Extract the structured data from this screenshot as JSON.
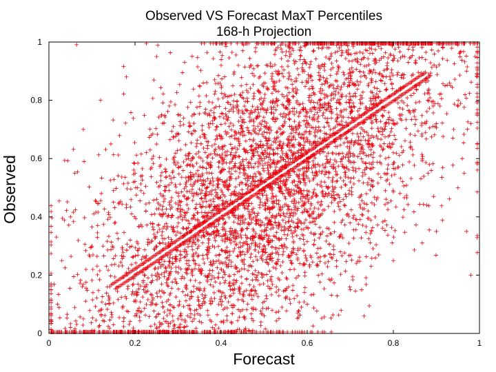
{
  "chart_data": {
    "type": "scatter",
    "title": "Observed VS Forecast MaxT Percentiles",
    "subtitle": "168-h Projection",
    "xlabel": "Forecast",
    "ylabel": "Observed",
    "xlim": [
      0,
      1
    ],
    "ylim": [
      0,
      1
    ],
    "x_ticks": [
      "0",
      "0.2",
      "0.4",
      "0.6",
      "0.8",
      "1"
    ],
    "y_ticks": [
      "0",
      "0.2",
      "0.4",
      "0.6",
      "0.8",
      "1"
    ],
    "grid": false,
    "legend": "none",
    "marker": "plus",
    "color": "#e8000b",
    "series": [
      {
        "description_points": [
          [
            0.15,
            0.16
          ],
          [
            0.2,
            0.21
          ],
          [
            0.25,
            0.26
          ],
          [
            0.3,
            0.31
          ],
          [
            0.35,
            0.36
          ],
          [
            0.4,
            0.41
          ],
          [
            0.45,
            0.46
          ],
          [
            0.5,
            0.51
          ],
          [
            0.55,
            0.56
          ],
          [
            0.6,
            0.61
          ],
          [
            0.65,
            0.66
          ],
          [
            0.7,
            0.71
          ],
          [
            0.75,
            0.76
          ],
          [
            0.8,
            0.81
          ],
          [
            0.85,
            0.86
          ],
          [
            0.88,
            0.89
          ]
        ],
        "values": [
          [
            0.05,
            0.02
          ],
          [
            0.08,
            0.05
          ],
          [
            0.1,
            0.01
          ],
          [
            0.12,
            0.08
          ],
          [
            0.15,
            0.03
          ],
          [
            0.18,
            0.12
          ],
          [
            0.2,
            0.06
          ],
          [
            0.22,
            0.15
          ],
          [
            0.25,
            0.1
          ],
          [
            0.28,
            0.2
          ],
          [
            0.3,
            0.05
          ],
          [
            0.32,
            0.25
          ],
          [
            0.35,
            0.15
          ],
          [
            0.38,
            0.3
          ],
          [
            0.4,
            0.22
          ],
          [
            0.42,
            0.35
          ],
          [
            0.45,
            0.28
          ],
          [
            0.48,
            0.4
          ],
          [
            0.5,
            0.33
          ],
          [
            0.52,
            0.45
          ],
          [
            0.55,
            0.38
          ],
          [
            0.58,
            0.5
          ],
          [
            0.6,
            0.42
          ],
          [
            0.62,
            0.55
          ],
          [
            0.65,
            0.48
          ],
          [
            0.68,
            0.6
          ],
          [
            0.7,
            0.52
          ],
          [
            0.72,
            0.65
          ],
          [
            0.75,
            0.58
          ],
          [
            0.78,
            0.7
          ],
          [
            0.8,
            0.62
          ],
          [
            0.82,
            0.75
          ],
          [
            0.85,
            0.68
          ],
          [
            0.88,
            0.8
          ],
          [
            0.9,
            0.72
          ],
          [
            0.92,
            0.85
          ],
          [
            0.95,
            0.78
          ],
          [
            0.97,
            0.9
          ],
          [
            0.99,
            0.95
          ],
          [
            0.1,
            0.3
          ],
          [
            0.15,
            0.45
          ],
          [
            0.2,
            0.55
          ],
          [
            0.25,
            0.65
          ],
          [
            0.3,
            0.75
          ],
          [
            0.35,
            0.85
          ],
          [
            0.4,
            0.92
          ],
          [
            0.45,
            0.97
          ],
          [
            0.55,
            0.99
          ],
          [
            0.65,
            0.98
          ],
          [
            0.75,
            0.99
          ],
          [
            0.85,
            0.99
          ],
          [
            0.95,
            0.99
          ],
          [
            0.3,
            0.02
          ],
          [
            0.4,
            0.04
          ],
          [
            0.5,
            0.06
          ],
          [
            0.6,
            0.1
          ],
          [
            0.7,
            0.15
          ],
          [
            0.8,
            0.25
          ],
          [
            0.9,
            0.35
          ],
          [
            0.95,
            0.5
          ],
          [
            0.02,
            0.1
          ],
          [
            0.03,
            0.25
          ],
          [
            0.05,
            0.4
          ],
          [
            0.06,
            0.55
          ],
          [
            0.08,
            0.7
          ],
          [
            0.12,
            0.8
          ],
          [
            0.18,
            0.88
          ],
          [
            0.25,
            0.95
          ],
          [
            0.98,
            0.2
          ],
          [
            0.97,
            0.35
          ],
          [
            0.96,
            0.6
          ],
          [
            0.94,
            0.7
          ]
        ]
      }
    ]
  }
}
